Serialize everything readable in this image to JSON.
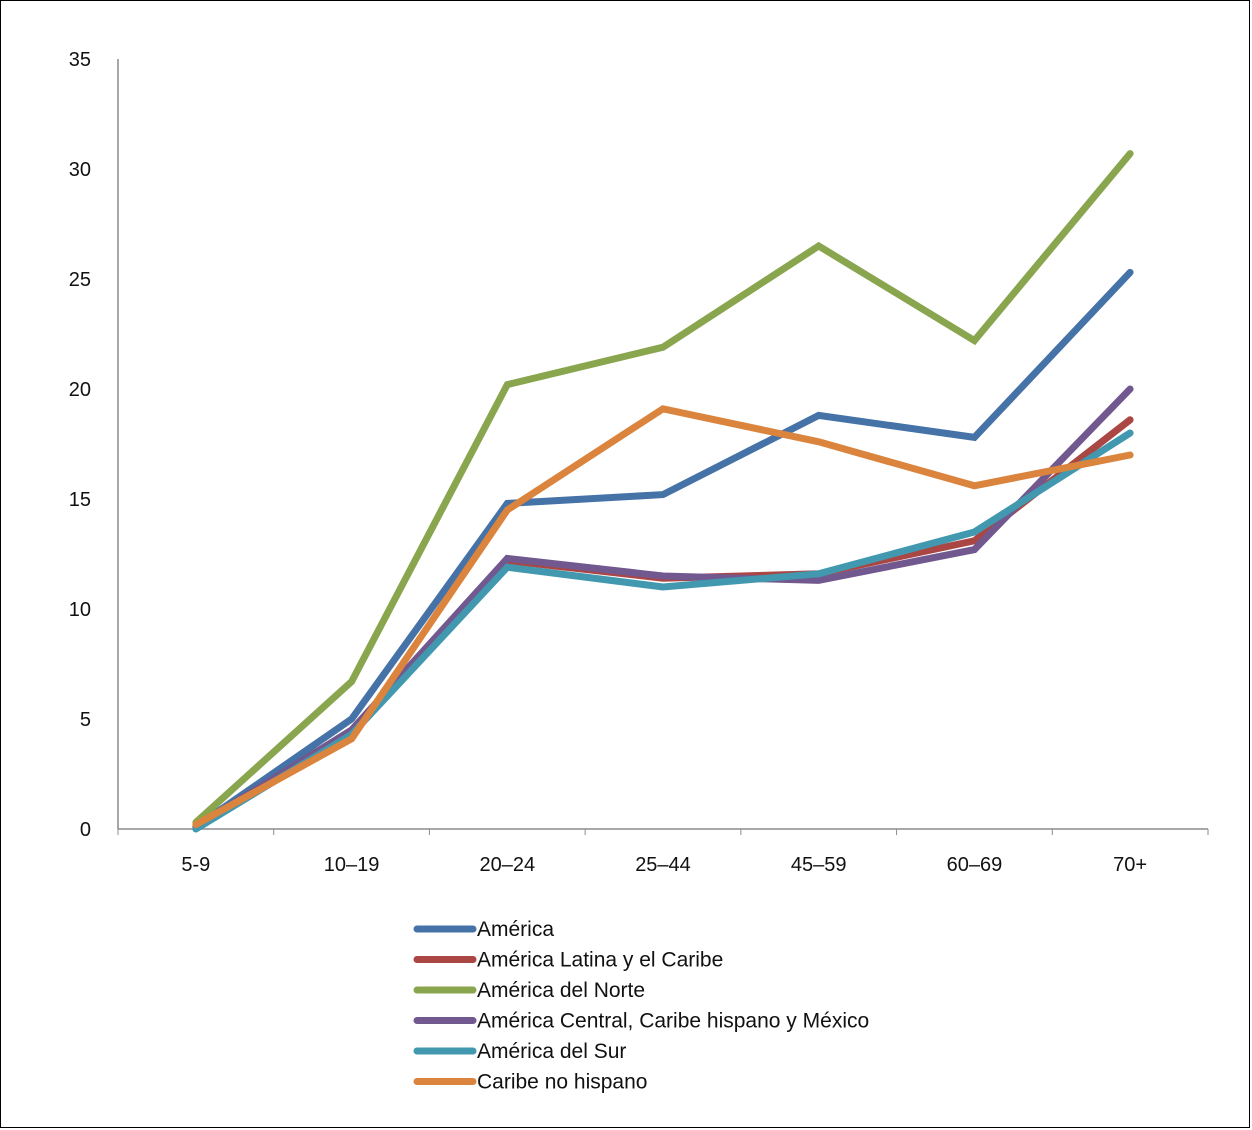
{
  "chart_data": {
    "type": "line",
    "title": "",
    "xlabel": "",
    "ylabel": "",
    "categories": [
      "5-9",
      "10–19",
      "20–24",
      "25–44",
      "45–59",
      "60–69",
      "70+"
    ],
    "ylim": [
      0,
      35
    ],
    "yticks": [
      0,
      5,
      10,
      15,
      20,
      25,
      30,
      35
    ],
    "grid": false,
    "legend_position": "bottom",
    "series": [
      {
        "name": "América",
        "color": "#4572A7",
        "values": [
          0.1,
          5.0,
          14.8,
          15.2,
          18.8,
          17.8,
          25.3
        ]
      },
      {
        "name": "América Latina y el Caribe",
        "color": "#AA4643",
        "values": [
          0.1,
          4.4,
          12.2,
          11.4,
          11.6,
          13.1,
          18.6
        ]
      },
      {
        "name": "América del Norte",
        "color": "#89A54E",
        "values": [
          0.3,
          6.7,
          20.2,
          21.9,
          26.5,
          22.2,
          30.7
        ]
      },
      {
        "name": "América Central, Caribe hispano y México",
        "color": "#71588F",
        "values": [
          0.1,
          4.5,
          12.3,
          11.5,
          11.3,
          12.7,
          20.0
        ]
      },
      {
        "name": "América del Sur",
        "color": "#4198AF",
        "values": [
          0.0,
          4.3,
          11.9,
          11.0,
          11.6,
          13.5,
          18.0
        ]
      },
      {
        "name": "Caribe no hispano",
        "color": "#DB843D",
        "values": [
          0.2,
          4.1,
          14.5,
          19.1,
          17.6,
          15.6,
          17.0
        ]
      }
    ]
  }
}
